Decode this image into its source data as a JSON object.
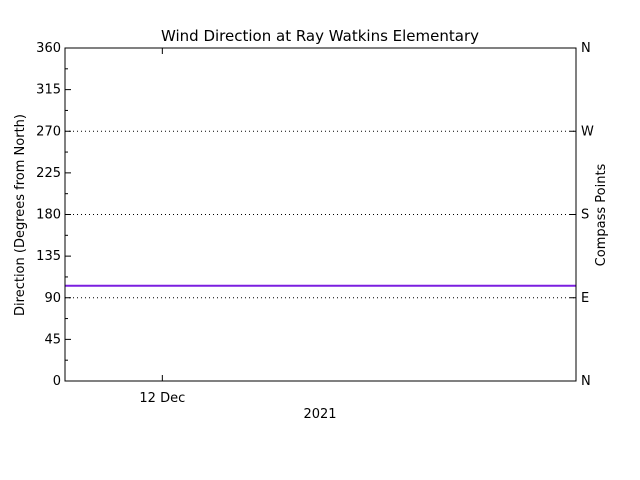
{
  "chart_data": {
    "type": "line",
    "title": "Wind Direction at Ray Watkins Elementary",
    "ylabel": "Direction (Degrees from North)",
    "y2label": "Compass Points",
    "ylim": [
      0,
      360
    ],
    "yticks": [
      0,
      45,
      90,
      135,
      180,
      225,
      270,
      315,
      360
    ],
    "y2ticks": [
      {
        "value": 0,
        "label": "N"
      },
      {
        "value": 90,
        "label": "E"
      },
      {
        "value": 180,
        "label": "S"
      },
      {
        "value": 270,
        "label": "W"
      },
      {
        "value": 360,
        "label": "N"
      }
    ],
    "gridlines_y": [
      90,
      180,
      270
    ],
    "xlim": [
      "2021-12-11T00:00",
      "2021-12-16T06:00"
    ],
    "xticks": [
      {
        "value": "2021-12-12T00:00",
        "label": "12 Dec"
      }
    ],
    "xlabel": "2021",
    "series": [
      {
        "color": "#7b1fe0",
        "x": [
          "2021-12-11T00:00",
          "2021-12-16T06:00"
        ],
        "y": [
          103,
          103
        ]
      }
    ]
  }
}
